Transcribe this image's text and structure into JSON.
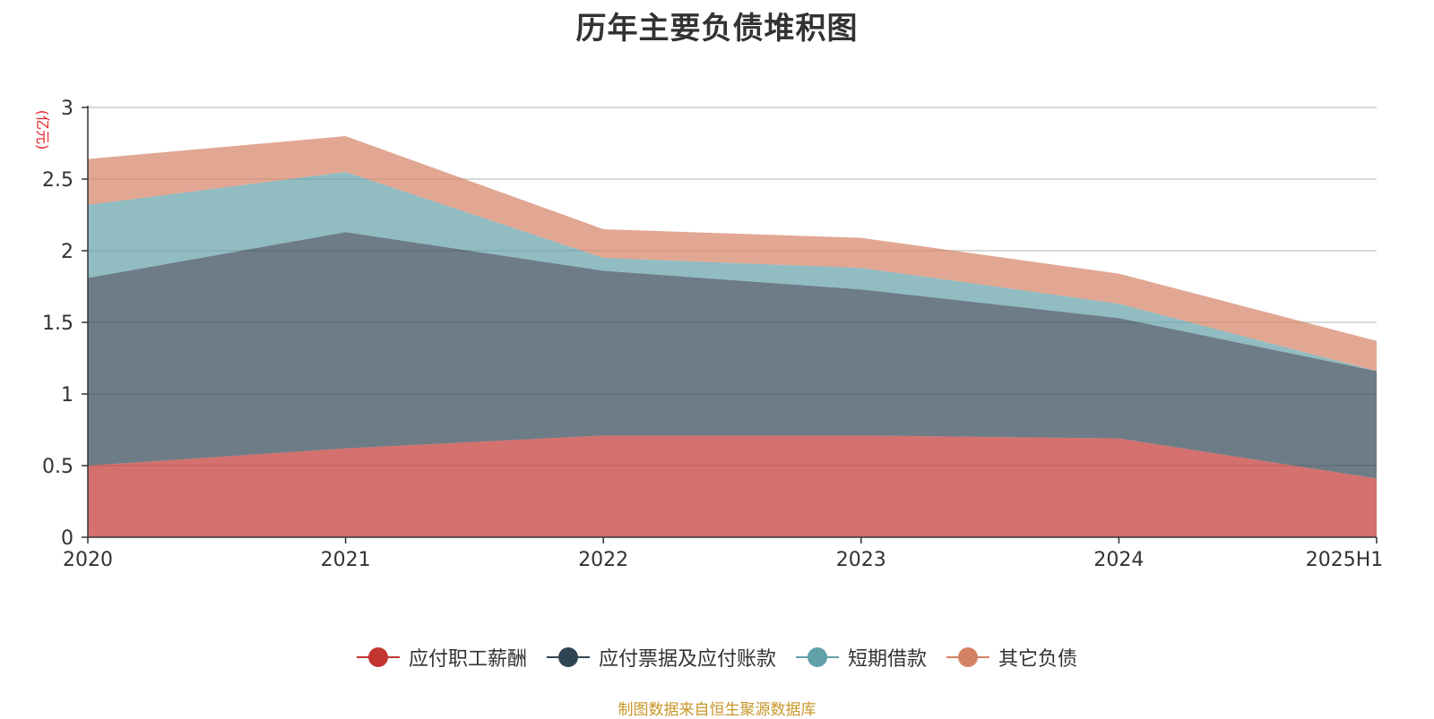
{
  "chart_data": {
    "type": "area",
    "stacked": true,
    "title": "历年主要负债堆积图",
    "ylabel": "(亿元)",
    "categories": [
      "2020",
      "2021",
      "2022",
      "2023",
      "2024",
      "2025H1"
    ],
    "ylim": [
      0,
      3
    ],
    "yticks": [
      "0",
      "0.5",
      "1",
      "1.5",
      "2",
      "2.5",
      "3"
    ],
    "grid": true,
    "legend_position": "bottom",
    "series": [
      {
        "name": "应付职工薪酬",
        "color": "#c23531",
        "values": [
          0.5,
          0.62,
          0.71,
          0.71,
          0.69,
          0.41
        ]
      },
      {
        "name": "应付票据及应付账款",
        "color": "#2f4554",
        "values": [
          1.31,
          1.51,
          1.15,
          1.02,
          0.84,
          0.75
        ]
      },
      {
        "name": "短期借款",
        "color": "#61a0a8",
        "values": [
          0.51,
          0.42,
          0.09,
          0.15,
          0.1,
          0.0
        ]
      },
      {
        "name": "其它负债",
        "color": "#d48265",
        "values": [
          0.32,
          0.25,
          0.2,
          0.21,
          0.21,
          0.21
        ]
      }
    ]
  },
  "footer": {
    "source": "制图数据来自恒生聚源数据库"
  }
}
